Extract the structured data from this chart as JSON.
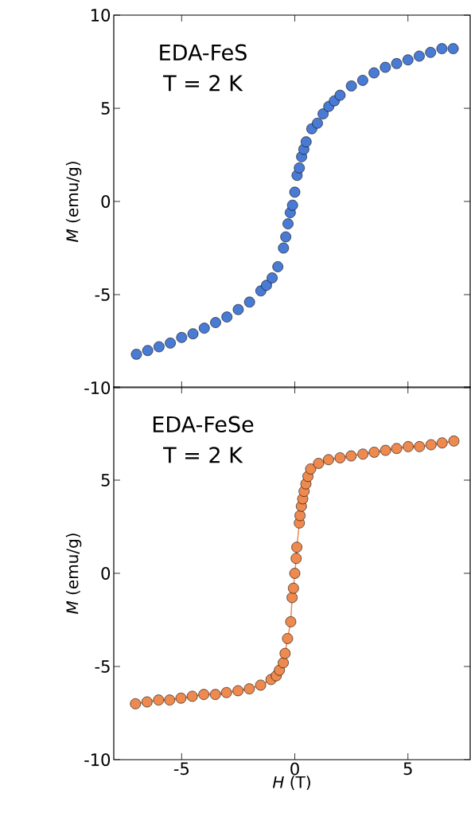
{
  "chart_data": [
    {
      "type": "scatter",
      "annotations": [
        "EDA-FeS",
        "T = 2 K"
      ],
      "ylabel": "*M* (emu/g)",
      "color": "#4a7bd4",
      "marker": "circle",
      "x": [
        -7,
        -6.5,
        -6,
        -5.5,
        -5,
        -4.5,
        -4,
        -3.5,
        -3,
        -2.5,
        -2,
        -1.5,
        -1.25,
        -1,
        -0.75,
        -0.5,
        -0.4,
        -0.3,
        -0.2,
        -0.1,
        0,
        0.1,
        0.2,
        0.3,
        0.4,
        0.5,
        0.75,
        1,
        1.25,
        1.5,
        1.75,
        2,
        2.5,
        3,
        3.5,
        4,
        4.5,
        5,
        5.5,
        6,
        6.5,
        7
      ],
      "values": [
        -8.2,
        -8.0,
        -7.8,
        -7.6,
        -7.3,
        -7.1,
        -6.8,
        -6.5,
        -6.2,
        -5.8,
        -5.4,
        -4.8,
        -4.5,
        -4.1,
        -3.5,
        -2.5,
        -1.9,
        -1.2,
        -0.6,
        -0.2,
        0.5,
        1.4,
        1.8,
        2.4,
        2.8,
        3.2,
        3.9,
        4.2,
        4.7,
        5.1,
        5.4,
        5.7,
        6.2,
        6.5,
        6.9,
        7.2,
        7.4,
        7.6,
        7.8,
        8.0,
        8.2,
        8.2
      ],
      "xlim": [
        -8,
        7.75
      ],
      "ylim": [
        -10,
        10
      ],
      "xticks": [
        -5,
        0,
        5
      ],
      "yticks": [
        -10,
        -5,
        0,
        5,
        10
      ],
      "tick_labels": "y"
    },
    {
      "type": "line",
      "annotations": [
        "EDA-FeSe",
        "T = 2 K"
      ],
      "xlabel": "*H* (T)",
      "ylabel": "*M* (emu/g)",
      "color": "#ee8a4f",
      "marker": "circle",
      "x": [
        -7.04,
        -6.53,
        -6.02,
        -5.53,
        -5.03,
        -4.53,
        -4.02,
        -3.51,
        -3.02,
        -2.51,
        -2.01,
        -1.51,
        -1.05,
        -0.82,
        -0.68,
        -0.51,
        -0.43,
        -0.32,
        -0.18,
        -0.12,
        -0.06,
        0,
        0.06,
        0.09,
        0.2,
        0.23,
        0.29,
        0.35,
        0.41,
        0.49,
        0.58,
        0.7,
        0.88,
        1.05,
        1.49,
        2.0,
        2.49,
        3.01,
        3.51,
        4.01,
        4.5,
        5.01,
        5.51,
        6.02,
        6.51,
        7.03
      ],
      "values": [
        -7.0,
        -6.9,
        -6.8,
        -6.8,
        -6.7,
        -6.6,
        -6.5,
        -6.5,
        -6.4,
        -6.3,
        -6.2,
        -6.0,
        -5.7,
        -5.5,
        -5.2,
        -4.8,
        -4.3,
        -3.5,
        -2.6,
        -1.3,
        -0.8,
        0,
        0.8,
        1.4,
        2.7,
        3.1,
        3.6,
        4.0,
        4.4,
        4.8,
        5.2,
        5.6,
        null,
        5.9,
        6.1,
        6.2,
        6.3,
        6.4,
        6.5,
        6.6,
        6.7,
        6.8,
        6.8,
        6.9,
        7.0,
        7.1
      ],
      "xlim": [
        -8,
        7.75
      ],
      "ylim": [
        -10,
        10
      ],
      "xticks": [
        -5,
        0,
        5
      ],
      "yticks": [
        -10,
        -5,
        0,
        5,
        {
          "value": 10,
          "label": null
        }
      ]
    }
  ]
}
